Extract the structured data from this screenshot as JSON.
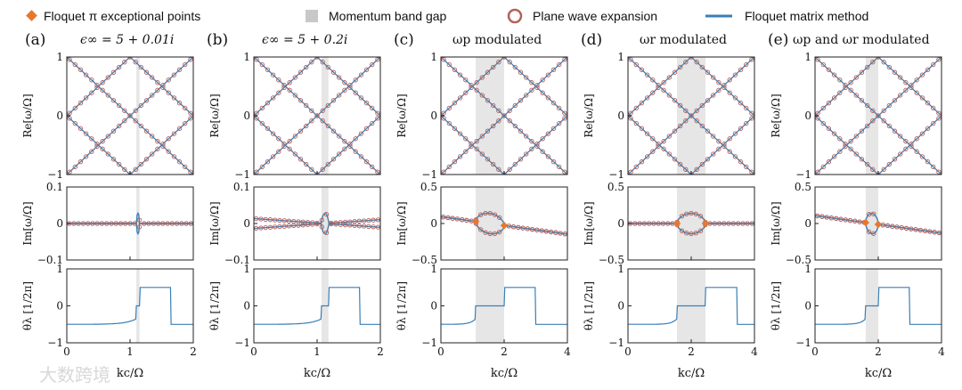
{
  "legend": {
    "items": [
      {
        "label": "Floquet π exceptional points",
        "marker": "orange-diamond",
        "color": "#e8772e"
      },
      {
        "label": "Momentum band gap",
        "marker": "gray-square",
        "color": "#c8c8c8"
      },
      {
        "label": "Plane wave expansion",
        "marker": "open-circle",
        "color": "#b5605a"
      },
      {
        "label": "Floquet matrix method",
        "marker": "line",
        "color": "#3a7fb5"
      }
    ]
  },
  "colors": {
    "line": "#3a7fb5",
    "circle": "#b5605a",
    "ep": "#e8772e",
    "gap": "#e6e6e6"
  },
  "watermark": "大数跨境",
  "chart_data": [
    {
      "type": "line",
      "panel": "(a)",
      "title": "ϵ∞ = 5 + 0.01i",
      "xlabel": "kc/Ω",
      "xlim": [
        0,
        2
      ],
      "xticks": [
        "0",
        "1",
        "2"
      ],
      "gap": [
        1.1,
        1.15
      ],
      "rows": [
        {
          "ylabel": "Re[ω/Ω]",
          "ylim": [
            -1,
            1
          ],
          "yticks": [
            "−1",
            "0",
            "1"
          ]
        },
        {
          "ylabel": "Im[ω/Ω]",
          "ylim": [
            -0.1,
            0.1
          ],
          "yticks": [
            "−0.1",
            "0",
            "0.1"
          ]
        },
        {
          "ylabel": "θλ [1/2π]",
          "ylim": [
            -1,
            1
          ],
          "yticks": [
            "−1",
            "0",
            "1"
          ]
        }
      ]
    },
    {
      "type": "line",
      "panel": "(b)",
      "title": "ϵ∞ = 5 + 0.2i",
      "xlabel": "kc/Ω",
      "xlim": [
        0,
        2
      ],
      "xticks": [
        "0",
        "1",
        "2"
      ],
      "gap": [
        1.07,
        1.18
      ],
      "rows": [
        {
          "ylabel": "Re[ω/Ω]",
          "ylim": [
            -1,
            1
          ],
          "yticks": [
            "−1",
            "0",
            "1"
          ]
        },
        {
          "ylabel": "Im[ω/Ω]",
          "ylim": [
            -0.1,
            0.1
          ],
          "yticks": [
            "−0.1",
            "0",
            "0.1"
          ]
        },
        {
          "ylabel": "θλ [1/2π]",
          "ylim": [
            -1,
            1
          ],
          "yticks": [
            "−1",
            "0",
            "1"
          ]
        }
      ]
    },
    {
      "type": "line",
      "panel": "(c)",
      "title": "ωp modulated",
      "xlabel": "kc/Ω",
      "xlim": [
        0,
        4
      ],
      "xticks": [
        "0",
        "2",
        "4"
      ],
      "gap": [
        1.1,
        2.0
      ],
      "rows": [
        {
          "ylabel": "Re[ω/Ω]",
          "ylim": [
            -1,
            1
          ],
          "yticks": [
            "−1",
            "0",
            "1"
          ]
        },
        {
          "ylabel": "Im[ω/Ω]",
          "ylim": [
            -0.5,
            0.5
          ],
          "yticks": [
            "−0.5",
            "0",
            "0.5"
          ]
        },
        {
          "ylabel": "θλ [1/2π]",
          "ylim": [
            -1,
            1
          ],
          "yticks": [
            "−1",
            "0",
            "1"
          ]
        }
      ]
    },
    {
      "type": "line",
      "panel": "(d)",
      "title": "ωr modulated",
      "xlabel": "kc/Ω",
      "xlim": [
        0,
        4
      ],
      "xticks": [
        "0",
        "2",
        "4"
      ],
      "gap": [
        1.55,
        2.45
      ],
      "rows": [
        {
          "ylabel": "Re[ω/Ω]",
          "ylim": [
            -1,
            1
          ],
          "yticks": [
            "−1",
            "0",
            "1"
          ]
        },
        {
          "ylabel": "Im[ω/Ω]",
          "ylim": [
            -0.5,
            0.5
          ],
          "yticks": [
            "−0.5",
            "0",
            "0.5"
          ]
        },
        {
          "ylabel": "θλ [1/2π]",
          "ylim": [
            -1,
            1
          ],
          "yticks": [
            "−1",
            "0",
            "1"
          ]
        }
      ]
    },
    {
      "type": "line",
      "panel": "(e)",
      "title": "ωp and ωr modulated",
      "xlabel": "kc/Ω",
      "xlim": [
        0,
        4
      ],
      "xticks": [
        "0",
        "2",
        "4"
      ],
      "gap": [
        1.6,
        2.0
      ],
      "rows": [
        {
          "ylabel": "Re[ω/Ω]",
          "ylim": [
            -1,
            1
          ],
          "yticks": [
            "−1",
            "0",
            "1"
          ]
        },
        {
          "ylabel": "Im[ω/Ω]",
          "ylim": [
            -0.5,
            0.5
          ],
          "yticks": [
            "−0.5",
            "0",
            "0.5"
          ]
        },
        {
          "ylabel": "θλ [1/2π]",
          "ylim": [
            -1,
            1
          ],
          "yticks": [
            "−1",
            "0",
            "1"
          ]
        }
      ]
    }
  ]
}
